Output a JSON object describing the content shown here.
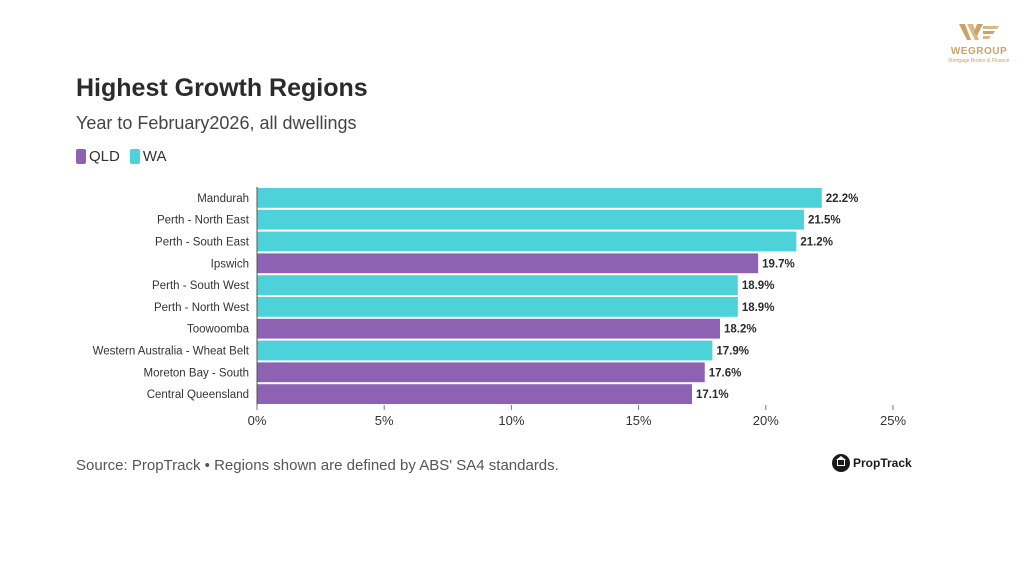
{
  "brand": {
    "name": "WEGROUP",
    "tagline": "Mortgage Broker & Finance",
    "color": "#c9a46a"
  },
  "source_text": "Source: PropTrack • Regions shown are defined by ABS' SA4 standards.",
  "proptrack_label": "PropTrack",
  "chart_data": {
    "type": "bar",
    "orientation": "horizontal",
    "title": "Highest Growth Regions",
    "subtitle": "Year to February2026, all dwellings",
    "xlim": [
      0,
      25
    ],
    "x_ticks": [
      0,
      5,
      10,
      15,
      20,
      25
    ],
    "x_tick_suffix": "%",
    "legend_position": "top-left",
    "legend": [
      {
        "name": "QLD",
        "color": "#8d62b3"
      },
      {
        "name": "WA",
        "color": "#4dd2da"
      }
    ],
    "bars": [
      {
        "category": "Mandurah",
        "value": 22.2,
        "label": "22.2%",
        "group": "WA"
      },
      {
        "category": "Perth - North East",
        "value": 21.5,
        "label": "21.5%",
        "group": "WA"
      },
      {
        "category": "Perth - South East",
        "value": 21.2,
        "label": "21.2%",
        "group": "WA"
      },
      {
        "category": "Ipswich",
        "value": 19.7,
        "label": "19.7%",
        "group": "QLD"
      },
      {
        "category": "Perth - South West",
        "value": 18.9,
        "label": "18.9%",
        "group": "WA"
      },
      {
        "category": "Perth - North West",
        "value": 18.9,
        "label": "18.9%",
        "group": "WA"
      },
      {
        "category": "Toowoomba",
        "value": 18.2,
        "label": "18.2%",
        "group": "QLD"
      },
      {
        "category": "Western Australia - Wheat Belt",
        "value": 17.9,
        "label": "17.9%",
        "group": "WA"
      },
      {
        "category": "Moreton Bay - South",
        "value": 17.6,
        "label": "17.6%",
        "group": "QLD"
      },
      {
        "category": "Central Queensland",
        "value": 17.1,
        "label": "17.1%",
        "group": "QLD"
      }
    ]
  }
}
